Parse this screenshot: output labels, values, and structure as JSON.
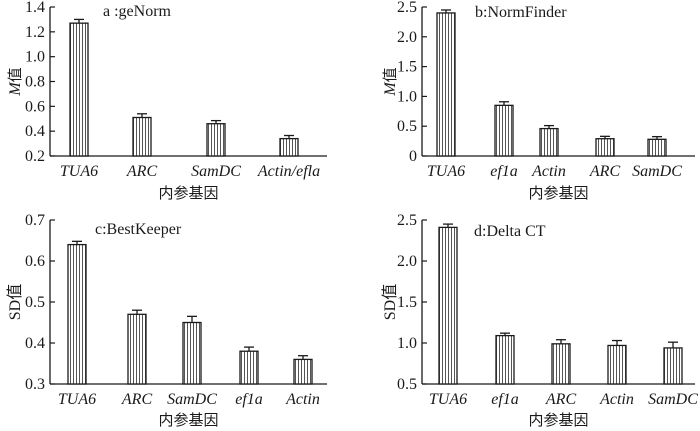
{
  "chart_data": [
    {
      "type": "bar",
      "title": "a :geNorm",
      "xlabel": "内参基因",
      "ylabel": "M值",
      "ylabel_italic_part": "M",
      "ylabel_rest": "值",
      "ylim": [
        0.2,
        1.4
      ],
      "yticks": [
        0.2,
        0.4,
        0.6,
        0.8,
        1.0,
        1.2,
        1.4
      ],
      "ytick_labels": [
        "0.2",
        "0.4",
        "0.6",
        "0.8",
        "1.0",
        "1.2",
        "1.4"
      ],
      "categories": [
        "TUA6",
        "ARC",
        "SamDC",
        "Actin/efla"
      ],
      "values": [
        1.27,
        0.51,
        0.46,
        0.34
      ],
      "errors": [
        0.03,
        0.03,
        0.025,
        0.025
      ],
      "grid": false,
      "bar_fill": "vertical-hatch"
    },
    {
      "type": "bar",
      "title": "b:NormFinder",
      "xlabel": "内参基因",
      "ylabel": "M值",
      "ylabel_italic_part": "M",
      "ylabel_rest": "值",
      "ylim": [
        0,
        2.5
      ],
      "yticks": [
        0,
        0.5,
        1.0,
        1.5,
        2.0,
        2.5
      ],
      "ytick_labels": [
        "0",
        "0.5",
        "1.0",
        "1.5",
        "2.0",
        "2.5"
      ],
      "categories": [
        "TUA6",
        "ef1a",
        "Actin",
        "ARC",
        "SamDC"
      ],
      "values": [
        2.4,
        0.85,
        0.46,
        0.29,
        0.28
      ],
      "errors": [
        0.05,
        0.06,
        0.05,
        0.04,
        0.045
      ],
      "grid": false,
      "bar_fill": "vertical-hatch"
    },
    {
      "type": "bar",
      "title": "c:BestKeeper",
      "xlabel": "内参基因",
      "ylabel": "SD值",
      "ylabel_italic_part": "",
      "ylabel_rest": "SD值",
      "ylim": [
        0.3,
        0.7
      ],
      "yticks": [
        0.3,
        0.4,
        0.5,
        0.6,
        0.7
      ],
      "ytick_labels": [
        "0.3",
        "0.4",
        "0.5",
        "0.6",
        "0.7"
      ],
      "categories": [
        "TUA6",
        "ARC",
        "SamDC",
        "ef1a",
        "Actin"
      ],
      "values": [
        0.64,
        0.47,
        0.45,
        0.38,
        0.36
      ],
      "errors": [
        0.008,
        0.01,
        0.015,
        0.01,
        0.009
      ],
      "grid": false,
      "bar_fill": "vertical-hatch"
    },
    {
      "type": "bar",
      "title": "d:Delta CT",
      "xlabel": "内参基因",
      "ylabel": "SD值",
      "ylabel_italic_part": "",
      "ylabel_rest": "SD值",
      "ylim": [
        0.5,
        2.5
      ],
      "yticks": [
        0.5,
        1.0,
        1.5,
        2.0,
        2.5
      ],
      "ytick_labels": [
        "0.5",
        "1.0",
        "1.5",
        "2.0",
        "2.5"
      ],
      "categories": [
        "TUA6",
        "ef1a",
        "ARC",
        "Actin",
        "SamDC"
      ],
      "values": [
        2.41,
        1.09,
        0.99,
        0.97,
        0.94
      ],
      "errors": [
        0.04,
        0.03,
        0.05,
        0.06,
        0.07
      ],
      "grid": false,
      "bar_fill": "vertical-hatch"
    }
  ],
  "colors": {
    "ink": "#1a1a1a",
    "hatch": "#555555",
    "background": "#ffffff"
  }
}
